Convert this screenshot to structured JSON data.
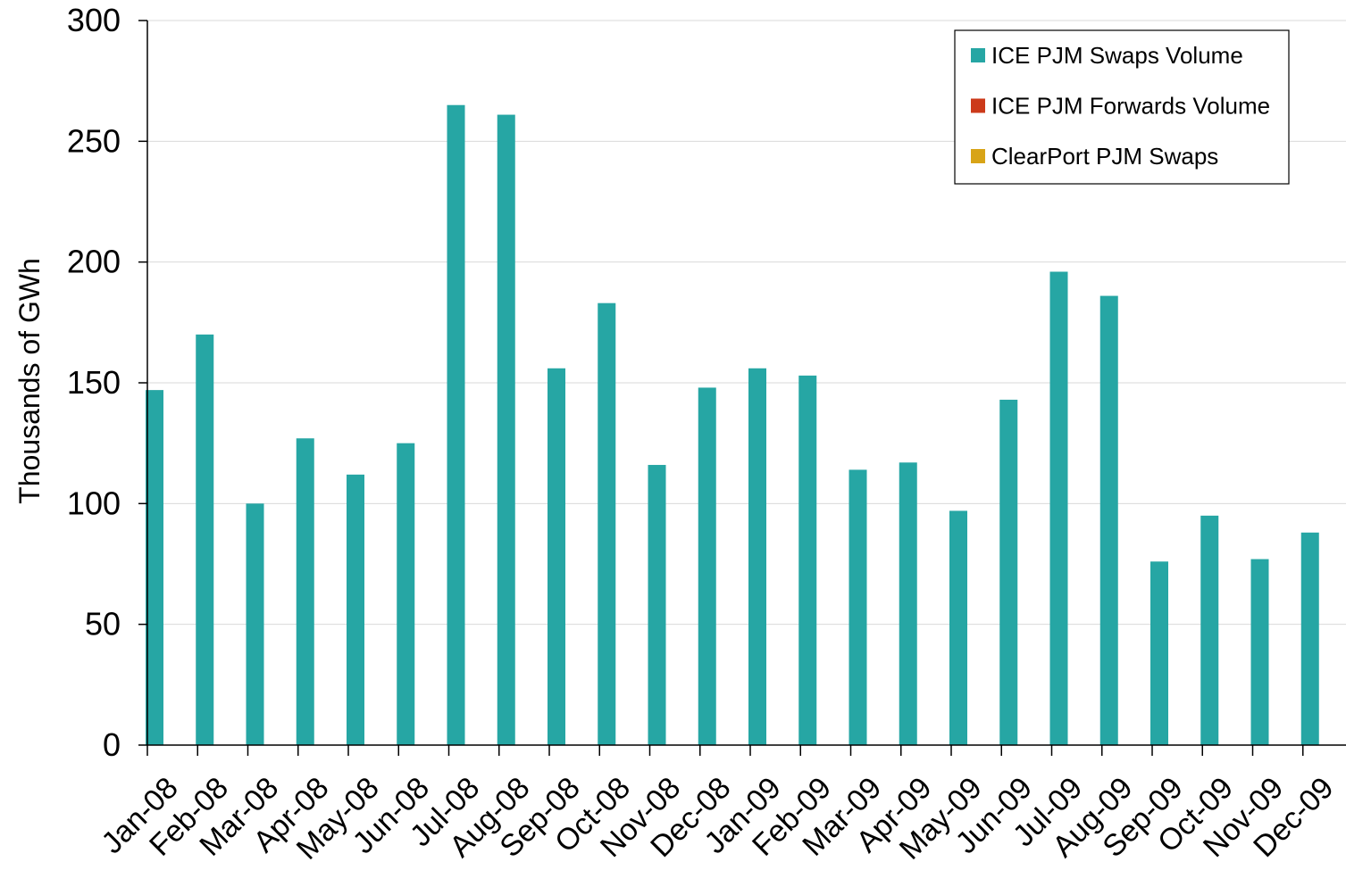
{
  "chart_data": {
    "type": "bar",
    "categories": [
      "Jan-08",
      "Feb-08",
      "Mar-08",
      "Apr-08",
      "May-08",
      "Jun-08",
      "Jul-08",
      "Aug-08",
      "Sep-08",
      "Oct-08",
      "Nov-08",
      "Dec-08",
      "Jan-09",
      "Feb-09",
      "Mar-09",
      "Apr-09",
      "May-09",
      "Jun-09",
      "Jul-09",
      "Aug-09",
      "Sep-09",
      "Oct-09",
      "Nov-09",
      "Dec-09"
    ],
    "series": [
      {
        "name": "ICE PJM Swaps Volume",
        "color": "#26a6a4",
        "values": [
          147,
          170,
          100,
          127,
          112,
          125,
          265,
          261,
          156,
          183,
          116,
          148,
          156,
          153,
          114,
          117,
          97,
          143,
          196,
          186,
          76,
          95,
          77,
          88
        ]
      },
      {
        "name": "ICE PJM Forwards Volume",
        "color": "#cc3a1a",
        "values": [
          0,
          0,
          0,
          0,
          0,
          0,
          0,
          0,
          0,
          0,
          0,
          0,
          0,
          0,
          0,
          0,
          0,
          0,
          0,
          0,
          0,
          0,
          0,
          0
        ]
      },
      {
        "name": "ClearPort PJM Swaps",
        "color": "#d8a417",
        "values": [
          0,
          0,
          0,
          0,
          0,
          0,
          0,
          0,
          0,
          0,
          0,
          0,
          0,
          0,
          0,
          0,
          0,
          0,
          0,
          0,
          0,
          0,
          0,
          0
        ]
      }
    ],
    "xlabel": "",
    "ylabel": "Thousands of GWh",
    "ylim": [
      0,
      300
    ],
    "yticks": [
      0,
      50,
      100,
      150,
      200,
      250,
      300
    ],
    "grid": true,
    "legend_position": "top-right"
  }
}
